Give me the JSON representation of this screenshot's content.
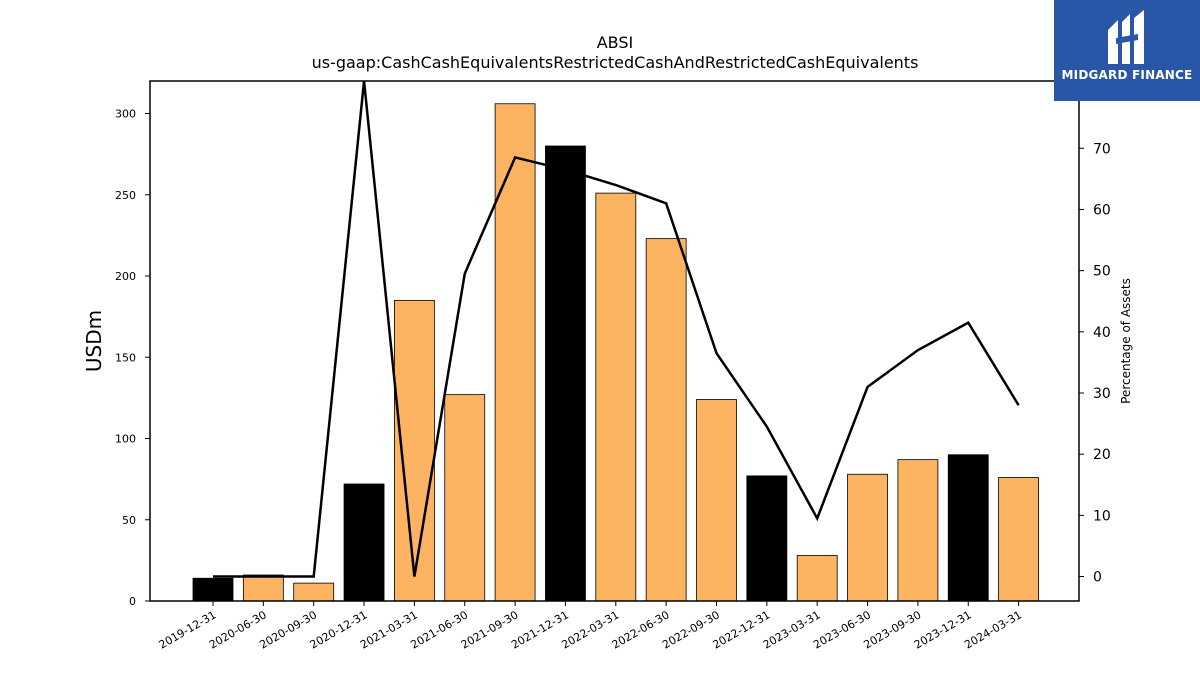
{
  "brand": {
    "name": "MIDGARD FINANCE",
    "color": "#2a56a8"
  },
  "chart_data": {
    "type": "bar",
    "title": "ABSI",
    "subtitle": "us-gaap:CashCashEquivalentsRestrictedCashAndRestrictedCashEquivalents",
    "ylabel": "USDm",
    "y2label": "Percentage of Assets",
    "ylim": [
      0,
      320
    ],
    "y2lim": [
      -4,
      81
    ],
    "yticks": [
      0,
      50,
      100,
      150,
      200,
      250,
      300
    ],
    "y2ticks": [
      0,
      10,
      20,
      30,
      40,
      50,
      60,
      70
    ],
    "categories": [
      "2019-12-31",
      "2020-06-30",
      "2020-09-30",
      "2020-12-31",
      "2021-03-31",
      "2021-06-30",
      "2021-09-30",
      "2021-12-31",
      "2022-03-31",
      "2022-06-30",
      "2022-09-30",
      "2022-12-31",
      "2023-03-31",
      "2023-06-30",
      "2023-09-30",
      "2023-12-31",
      "2024-03-31"
    ],
    "series": [
      {
        "type": "bar",
        "values": [
          14,
          16,
          11,
          72,
          185,
          127,
          306,
          280,
          251,
          223,
          124,
          77,
          28,
          78,
          87,
          90,
          76
        ],
        "colors": [
          "#000000",
          "#fdb462",
          "#fdb462",
          "#000000",
          "#fdb462",
          "#fdb462",
          "#fdb462",
          "#000000",
          "#fdb462",
          "#fdb462",
          "#fdb462",
          "#000000",
          "#fdb462",
          "#fdb462",
          "#fdb462",
          "#000000",
          "#fdb462"
        ]
      },
      {
        "type": "line",
        "axis": "right",
        "color": "#000000",
        "values": [
          0,
          0,
          0,
          81,
          0,
          49.5,
          68.5,
          66.5,
          64,
          61,
          36.5,
          24.5,
          9.5,
          31,
          37,
          41.5,
          28
        ]
      }
    ],
    "grid": false
  }
}
